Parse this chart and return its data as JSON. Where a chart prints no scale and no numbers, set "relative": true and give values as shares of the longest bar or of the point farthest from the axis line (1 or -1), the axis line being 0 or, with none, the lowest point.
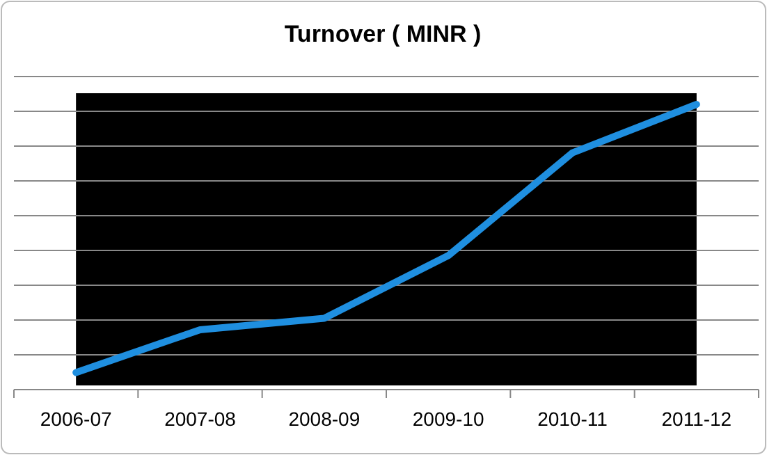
{
  "chart_data": {
    "type": "line",
    "title": "Turnover ( MINR )",
    "categories": [
      "2006-07",
      "2007-08",
      "2008-09",
      "2009-10",
      "2010-11",
      "2011-12"
    ],
    "series": [
      {
        "color": "#1f8fe0",
        "values": [
          0.06,
          0.21,
          0.25,
          0.47,
          0.83,
          1
        ]
      }
    ],
    "bands": [
      {
        "axis": "x",
        "from": "2006-07",
        "to": "2011-12",
        "color": "#000000"
      }
    ],
    "relative": true,
    "grid": "y",
    "line_style": "solid",
    "marker": "none"
  }
}
